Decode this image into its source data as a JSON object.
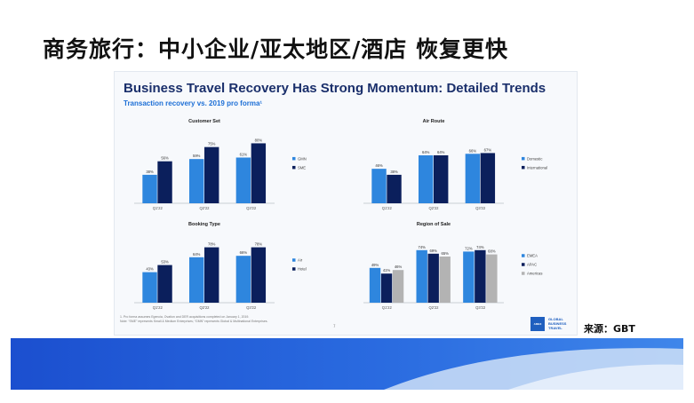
{
  "slide": {
    "title": "商务旅行：中小企业/亚太地区/酒店 恢复更快",
    "source": "来源：GBT"
  },
  "panel": {
    "title": "Business Travel Recovery Has Strong Momentum: Detailed Trends",
    "subtitle": "Transaction recovery vs. 2019 pro forma¹",
    "footnote_1": "1. Pro forma assumes Egencia, Ovation and DER acquisitions completed on January 1, 2019.",
    "footnote_2": "Note: “SME” represents Small & Medium Enterprises; “GMN” represents Global & Multinational Enterprises.",
    "page_number": "7",
    "logo_badge": "AMEX",
    "logo_lines": [
      "GLOBAL",
      "BUSINESS",
      "TRAVEL"
    ]
  },
  "colors": {
    "light_blue": "#2e86de",
    "navy": "#0b1f5c",
    "gray": "#b3b3b3",
    "banner_dark": "#1b4fcf",
    "banner_light": "#cfe0f7"
  },
  "chart_data": [
    {
      "type": "bar",
      "title": "Customer Set",
      "categories": [
        "Q1'22",
        "Q2'22",
        "Q3'22"
      ],
      "series": [
        {
          "name": "GMN",
          "values": [
            38,
            59,
            61
          ]
        },
        {
          "name": "SME",
          "values": [
            56,
            75,
            80
          ]
        }
      ],
      "ylim": [
        0,
        90
      ],
      "legend": "right"
    },
    {
      "type": "bar",
      "title": "Air Route",
      "categories": [
        "Q1'22",
        "Q2'22",
        "Q3'22"
      ],
      "series": [
        {
          "name": "Domestic",
          "values": [
            46,
            64,
            66
          ]
        },
        {
          "name": "International",
          "values": [
            38,
            64,
            67
          ]
        }
      ],
      "ylim": [
        0,
        90
      ],
      "legend": "right"
    },
    {
      "type": "bar",
      "title": "Booking Type",
      "categories": [
        "Q1'22",
        "Q2'22",
        "Q3'22"
      ],
      "series": [
        {
          "name": "Air",
          "values": [
            43,
            64,
            66
          ]
        },
        {
          "name": "Hotel",
          "values": [
            53,
            78,
            78
          ]
        }
      ],
      "ylim": [
        0,
        90
      ],
      "legend": "right"
    },
    {
      "type": "bar",
      "title": "Region of Sale",
      "categories": [
        "Q1'22",
        "Q2'22",
        "Q3'22"
      ],
      "series": [
        {
          "name": "EMEA",
          "values": [
            49,
            74,
            72
          ]
        },
        {
          "name": "APAC",
          "values": [
            41,
            69,
            74
          ]
        },
        {
          "name": "Americas",
          "values": [
            46,
            65,
            68
          ]
        }
      ],
      "ylim": [
        0,
        90
      ],
      "legend": "right"
    }
  ]
}
